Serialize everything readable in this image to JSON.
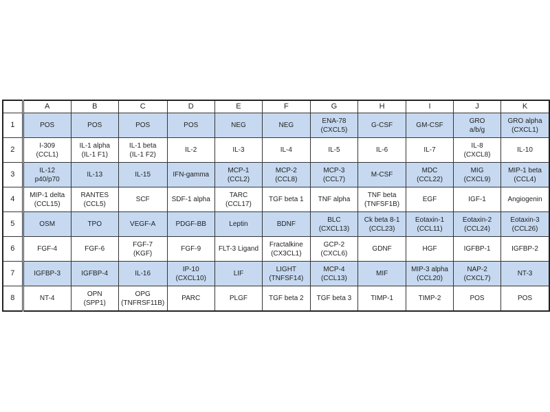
{
  "columns": [
    "A",
    "B",
    "C",
    "D",
    "E",
    "F",
    "G",
    "H",
    "I",
    "J",
    "K"
  ],
  "rows": [
    {
      "label": "1",
      "cells": [
        "POS",
        "POS",
        "POS",
        "POS",
        "NEG",
        "NEG",
        "ENA-78\n(CXCL5)",
        "G-CSF",
        "GM-CSF",
        "GRO\na/b/g",
        "GRO alpha\n(CXCL1)"
      ]
    },
    {
      "label": "2",
      "cells": [
        "I-309\n(CCL1)",
        "IL-1 alpha\n(IL-1 F1)",
        "IL-1 beta\n(IL-1 F2)",
        "IL-2",
        "IL-3",
        "IL-4",
        "IL-5",
        "IL-6",
        "IL-7",
        "IL-8\n(CXCL8)",
        "IL-10"
      ]
    },
    {
      "label": "3",
      "cells": [
        "IL-12\np40/p70",
        "IL-13",
        "IL-15",
        "IFN-gamma",
        "MCP-1\n(CCL2)",
        "MCP-2\n(CCL8)",
        "MCP-3\n(CCL7)",
        "M-CSF",
        "MDC\n(CCL22)",
        "MIG\n(CXCL9)",
        "MIP-1 beta\n(CCL4)"
      ]
    },
    {
      "label": "4",
      "cells": [
        "MIP-1 delta\n(CCL15)",
        "RANTES\n(CCL5)",
        "SCF",
        "SDF-1 alpha",
        "TARC\n(CCL17)",
        "TGF beta 1",
        "TNF alpha",
        "TNF beta\n(TNFSF1B)",
        "EGF",
        "IGF-1",
        "Angiogenin"
      ]
    },
    {
      "label": "5",
      "cells": [
        "OSM",
        "TPO",
        "VEGF-A",
        "PDGF-BB",
        "Leptin",
        "BDNF",
        "BLC\n(CXCL13)",
        "Ck beta 8-1\n(CCL23)",
        "Eotaxin-1\n(CCL11)",
        "Eotaxin-2\n(CCL24)",
        "Eotaxin-3\n(CCL26)"
      ]
    },
    {
      "label": "6",
      "cells": [
        "FGF-4",
        "FGF-6",
        "FGF-7\n(KGF)",
        "FGF-9",
        "FLT-3 Ligand",
        "Fractalkine\n(CX3CL1)",
        "GCP-2\n(CXCL6)",
        "GDNF",
        "HGF",
        "IGFBP-1",
        "IGFBP-2"
      ]
    },
    {
      "label": "7",
      "cells": [
        "IGFBP-3",
        "IGFBP-4",
        "IL-16",
        "IP-10\n(CXCL10)",
        "LIF",
        "LIGHT\n(TNFSF14)",
        "MCP-4\n(CCL13)",
        "MIF",
        "MIP-3 alpha\n(CCL20)",
        "NAP-2\n(CXCL7)",
        "NT-3"
      ]
    },
    {
      "label": "8",
      "cells": [
        "NT-4",
        "OPN\n(SPP1)",
        "OPG\n(TNFRSF11B)",
        "PARC",
        "PLGF",
        "TGF beta 2",
        "TGF beta 3",
        "TIMP-1",
        "TIMP-2",
        "POS",
        "POS"
      ]
    }
  ],
  "colors": {
    "highlight_row": "#c6d9f0",
    "border": "#222222"
  }
}
